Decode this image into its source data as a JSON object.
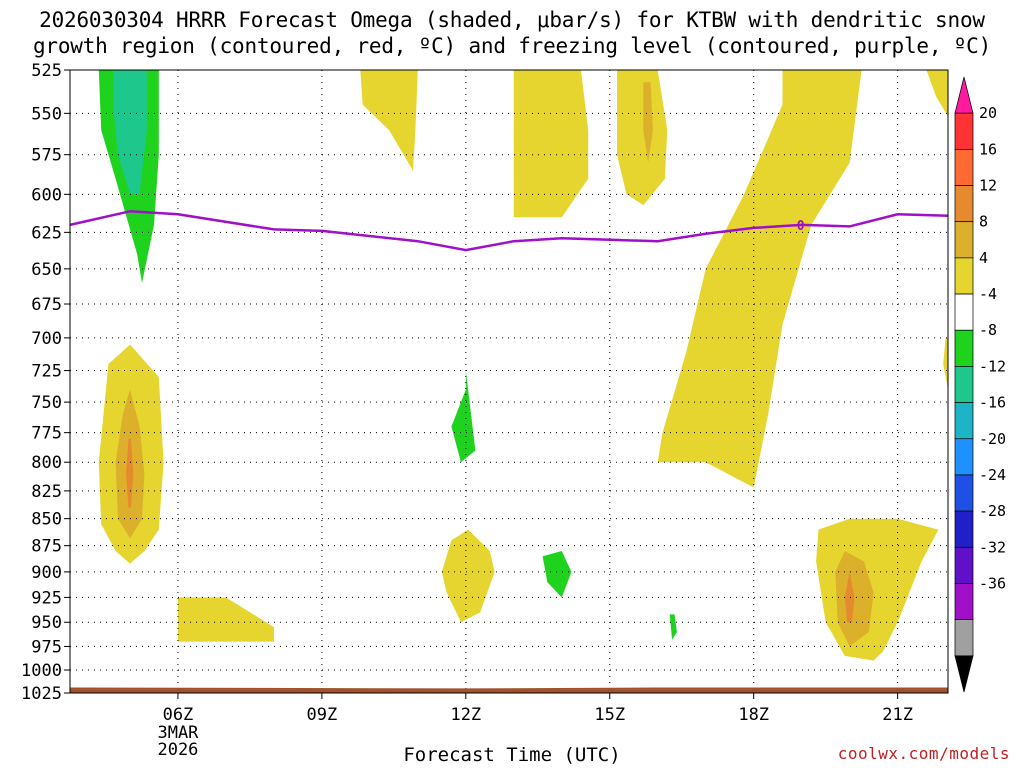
{
  "title_line1": "2026030304 HRRR Forecast Omega (shaded, μbar/s) for KTBW with dendritic snow",
  "title_line2": "growth region (contoured, red, ºC) and freezing level (contoured, purple, ºC)",
  "x_axis_title": "Forecast Time (UTC)",
  "credit": "coolwx.com/models",
  "colors": {
    "pos_4_8": "#e5d52e",
    "pos_8_12": "#dcb02b",
    "pos_12_16": "#e58a2e",
    "neg_4_8": "#1ed21e",
    "neg_8_12": "#1ec88c",
    "freezing": "#a010c8",
    "ground": "#a0522d"
  },
  "chart_data": {
    "type": "heatmap",
    "x_unit": "hours since 2026-03-03 04Z",
    "xlim": [
      -0.25,
      18.05
    ],
    "ylim_hpa": [
      525,
      1025
    ],
    "y_ticks": [
      "525",
      "550",
      "575",
      "600",
      "625",
      "650",
      "675",
      "700",
      "725",
      "750",
      "775",
      "800",
      "825",
      "850",
      "875",
      "900",
      "925",
      "950",
      "975",
      "1000",
      "1025"
    ],
    "x_ticks": [
      {
        "hour": 2,
        "label": "06Z"
      },
      {
        "hour": 5,
        "label": "09Z"
      },
      {
        "hour": 8,
        "label": "12Z"
      },
      {
        "hour": 11,
        "label": "15Z"
      },
      {
        "hour": 14,
        "label": "18Z"
      },
      {
        "hour": 17,
        "label": "21Z"
      }
    ],
    "date_label": [
      "3MAR",
      "2026"
    ],
    "colorbar": {
      "labels": [
        "20",
        "16",
        "12",
        "8",
        "4",
        "-4",
        "-8",
        "-12",
        "-16",
        "-20",
        "-24",
        "-28",
        "-32",
        "-36"
      ],
      "bins": [
        "#ff1a9e",
        "#ff3333",
        "#ff6a33",
        "#e58a2e",
        "#dcb02b",
        "#e5d52e",
        "#ffffff",
        "#1ed21e",
        "#1ec88c",
        "#1eb4c8",
        "#1e90ff",
        "#1e50e6",
        "#2020c8",
        "#6010c8",
        "#a010c8",
        "#a0a0a0",
        "#000000"
      ]
    },
    "freezing_level": {
      "value_label": "0",
      "points": [
        [
          -0.25,
          620
        ],
        [
          1.0,
          611
        ],
        [
          2.0,
          613
        ],
        [
          4.0,
          623
        ],
        [
          5.0,
          624
        ],
        [
          7.0,
          631
        ],
        [
          8.0,
          637
        ],
        [
          9.0,
          631
        ],
        [
          10.0,
          629
        ],
        [
          11.0,
          630
        ],
        [
          12.0,
          631
        ],
        [
          13.0,
          626
        ],
        [
          14.0,
          622
        ],
        [
          15.0,
          620
        ],
        [
          16.0,
          621
        ],
        [
          17.0,
          613
        ],
        [
          18.05,
          614
        ]
      ]
    },
    "omega_regions": [
      {
        "level": "neg_4_8",
        "pts": [
          [
            0.35,
            525
          ],
          [
            1.6,
            525
          ],
          [
            1.6,
            575
          ],
          [
            1.5,
            620
          ],
          [
            1.25,
            660
          ],
          [
            1.15,
            640
          ],
          [
            0.7,
            590
          ],
          [
            0.4,
            560
          ]
        ]
      },
      {
        "level": "neg_8_12",
        "pts": [
          [
            0.65,
            525
          ],
          [
            1.35,
            525
          ],
          [
            1.35,
            560
          ],
          [
            1.2,
            600
          ],
          [
            1.0,
            600
          ],
          [
            0.75,
            575
          ],
          [
            0.65,
            545
          ]
        ]
      },
      {
        "level": "pos_4_8",
        "pts": [
          [
            5.8,
            525
          ],
          [
            7.0,
            525
          ],
          [
            6.95,
            560
          ],
          [
            6.9,
            585
          ],
          [
            6.4,
            560
          ],
          [
            5.85,
            545
          ]
        ]
      },
      {
        "level": "pos_4_8",
        "pts": [
          [
            9.0,
            525
          ],
          [
            10.4,
            525
          ],
          [
            10.55,
            560
          ],
          [
            10.55,
            590
          ],
          [
            10.0,
            615
          ],
          [
            9.0,
            615
          ]
        ]
      },
      {
        "level": "pos_4_8",
        "pts": [
          [
            11.15,
            525
          ],
          [
            12.0,
            525
          ],
          [
            12.2,
            560
          ],
          [
            12.15,
            590
          ],
          [
            11.7,
            607
          ],
          [
            11.35,
            600
          ],
          [
            11.15,
            575
          ]
        ]
      },
      {
        "level": "pos_8_12",
        "pts": [
          [
            11.7,
            532
          ],
          [
            11.85,
            532
          ],
          [
            11.9,
            560
          ],
          [
            11.8,
            580
          ],
          [
            11.7,
            560
          ]
        ]
      },
      {
        "level": "pos_4_8",
        "pts": [
          [
            14.6,
            525
          ],
          [
            16.25,
            525
          ],
          [
            16.0,
            580
          ],
          [
            15.2,
            620
          ],
          [
            14.6,
            690
          ],
          [
            14.3,
            760
          ],
          [
            14.0,
            822
          ],
          [
            13.0,
            800
          ],
          [
            12.0,
            800
          ],
          [
            12.1,
            775
          ],
          [
            12.6,
            710
          ],
          [
            13.0,
            650
          ],
          [
            13.8,
            600
          ],
          [
            14.6,
            545
          ]
        ]
      },
      {
        "level": "pos_4_8",
        "pts": [
          [
            17.6,
            525
          ],
          [
            18.05,
            525
          ],
          [
            18.05,
            552
          ],
          [
            17.8,
            540
          ]
        ]
      },
      {
        "level": "pos_4_8",
        "pts": [
          [
            18.0,
            700
          ],
          [
            18.05,
            700
          ],
          [
            18.05,
            740
          ],
          [
            17.95,
            720
          ]
        ]
      },
      {
        "level": "pos_4_8",
        "pts": [
          [
            0.35,
            800
          ],
          [
            0.55,
            720
          ],
          [
            1.0,
            705
          ],
          [
            1.6,
            730
          ],
          [
            1.7,
            800
          ],
          [
            1.6,
            860
          ],
          [
            1.3,
            880
          ],
          [
            1.0,
            892
          ],
          [
            0.7,
            880
          ],
          [
            0.4,
            855
          ]
        ]
      },
      {
        "level": "pos_8_12",
        "pts": [
          [
            0.7,
            800
          ],
          [
            0.85,
            760
          ],
          [
            1.0,
            740
          ],
          [
            1.2,
            770
          ],
          [
            1.3,
            810
          ],
          [
            1.25,
            850
          ],
          [
            1.0,
            868
          ],
          [
            0.75,
            850
          ]
        ]
      },
      {
        "level": "pos_12_16",
        "pts": [
          [
            0.92,
            810
          ],
          [
            0.97,
            780
          ],
          [
            1.02,
            780
          ],
          [
            1.07,
            810
          ],
          [
            1.02,
            840
          ],
          [
            0.97,
            840
          ]
        ]
      },
      {
        "level": "pos_4_8",
        "pts": [
          [
            2.0,
            925
          ],
          [
            3.0,
            925
          ],
          [
            4.0,
            955
          ],
          [
            4.0,
            970
          ],
          [
            2.0,
            970
          ]
        ]
      },
      {
        "level": "pos_4_8",
        "pts": [
          [
            7.7,
            870
          ],
          [
            8.05,
            860
          ],
          [
            8.5,
            880
          ],
          [
            8.6,
            900
          ],
          [
            8.3,
            940
          ],
          [
            7.9,
            950
          ],
          [
            7.6,
            920
          ],
          [
            7.5,
            900
          ]
        ]
      },
      {
        "level": "neg_4_8",
        "pts": [
          [
            7.7,
            770
          ],
          [
            8.0,
            740
          ],
          [
            8.0,
            725
          ],
          [
            8.2,
            790
          ],
          [
            7.9,
            800
          ]
        ]
      },
      {
        "level": "neg_4_8",
        "pts": [
          [
            9.6,
            885
          ],
          [
            10.0,
            880
          ],
          [
            10.2,
            900
          ],
          [
            10.0,
            925
          ],
          [
            9.7,
            910
          ]
        ]
      },
      {
        "level": "neg_4_8",
        "pts": [
          [
            12.25,
            942
          ],
          [
            12.35,
            942
          ],
          [
            12.4,
            960
          ],
          [
            12.3,
            968
          ]
        ]
      },
      {
        "level": "pos_4_8",
        "pts": [
          [
            15.35,
            860
          ],
          [
            16.0,
            850
          ],
          [
            17.0,
            850
          ],
          [
            17.85,
            860
          ],
          [
            17.5,
            890
          ],
          [
            17.0,
            950
          ],
          [
            16.7,
            980
          ],
          [
            16.5,
            990
          ],
          [
            15.9,
            985
          ],
          [
            15.5,
            950
          ],
          [
            15.3,
            890
          ]
        ]
      },
      {
        "level": "pos_8_12",
        "pts": [
          [
            15.7,
            900
          ],
          [
            15.9,
            880
          ],
          [
            16.3,
            890
          ],
          [
            16.5,
            920
          ],
          [
            16.4,
            960
          ],
          [
            16.0,
            975
          ],
          [
            15.75,
            950
          ]
        ]
      },
      {
        "level": "pos_12_16",
        "pts": [
          [
            15.9,
            925
          ],
          [
            16.0,
            900
          ],
          [
            16.1,
            925
          ],
          [
            16.05,
            950
          ],
          [
            15.95,
            950
          ]
        ]
      }
    ]
  }
}
